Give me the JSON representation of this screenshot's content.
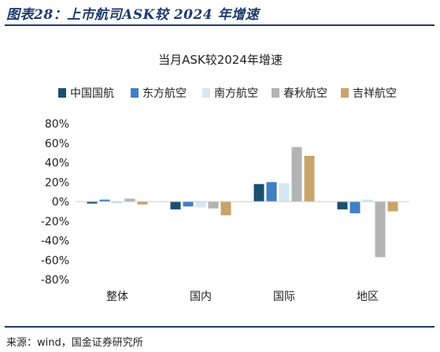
{
  "figure_title": "图表28：上市航司ASK较 2024 年增速",
  "source": "来源：wind，国金证券研究所",
  "chart_data": {
    "type": "bar",
    "title": "当月ASK较2024年增速",
    "categories": [
      "整体",
      "国内",
      "国际",
      "地区"
    ],
    "ylim": [
      -80,
      80
    ],
    "yticks": [
      80,
      60,
      40,
      20,
      0,
      -20,
      -40,
      -60,
      -80
    ],
    "ytick_labels": [
      "80%",
      "60%",
      "40%",
      "20%",
      "0%",
      "-20%",
      "-40%",
      "-60%",
      "-80%"
    ],
    "unit": "%",
    "legend_position": "top",
    "grid": false,
    "series": [
      {
        "name": "中国国航",
        "color": "#1a4f6e",
        "values": [
          -2,
          -8,
          18,
          -8
        ]
      },
      {
        "name": "东方航空",
        "color": "#3f7fc4",
        "values": [
          2,
          -5,
          20,
          -12
        ]
      },
      {
        "name": "南方航空",
        "color": "#d6e6f4",
        "values": [
          -2,
          -6,
          19,
          2
        ]
      },
      {
        "name": "春秋航空",
        "color": "#b3b3b3",
        "values": [
          3,
          -7,
          56,
          -57
        ]
      },
      {
        "name": "吉祥航空",
        "color": "#c8a46a",
        "values": [
          -3,
          -14,
          47,
          -10
        ]
      }
    ]
  }
}
